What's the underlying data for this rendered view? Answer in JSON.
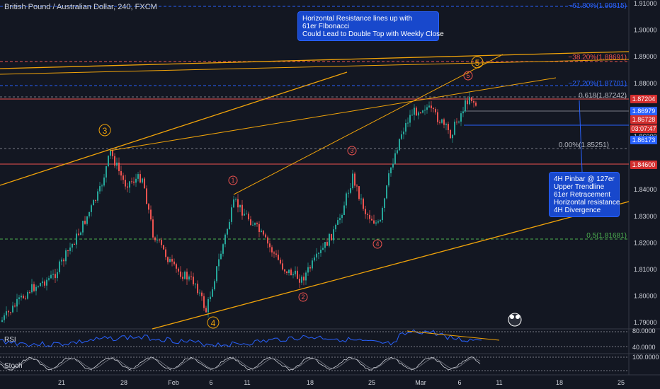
{
  "symbol_title": "British Pound / Australian Dollar, 240, FXCM",
  "annotations": {
    "top_note": [
      "Horizontal Resistance lines up with",
      "61er FIbonacci",
      "Could Lead to Double Top with Weekly Close"
    ],
    "right_note": [
      "4H Pinbar @ 127er",
      "Upper Trendline",
      "61er Retracement",
      "Horizontal resistance",
      "4H Divergence"
    ]
  },
  "fib_labels": {
    "f618": "−61.80%(1.90815)",
    "f382": "−38.20%(1.88691)",
    "f272": "−27.20%(1.87701)",
    "f0618": "0.618(1.87242)",
    "f0": "0.00%(1.85251)",
    "f05": "0.5(1.81681)"
  },
  "wave_labels": {
    "w3_big": "3",
    "w4_big": "4",
    "w5_big": "5",
    "w1_small": "1",
    "w2_small": "2",
    "w3_small": "3",
    "w4_small": "4",
    "w5_small": "5"
  },
  "price_axis": [
    "1.91000",
    "1.90000",
    "1.89000",
    "1.88000",
    "1.87000",
    "1.86000",
    "1.85000",
    "1.84000",
    "1.83000",
    "1.82000",
    "1.81000",
    "1.80000",
    "1.79000"
  ],
  "price_tags": [
    {
      "text": "1.87204",
      "color": "#d32f2f"
    },
    {
      "text": "1.86979",
      "color": "#2962ff"
    },
    {
      "text": "1.86728",
      "color": "#d32f2f"
    },
    {
      "text": "03:07:47",
      "color": "#d32f2f"
    },
    {
      "text": "1.86173",
      "color": "#2962ff"
    },
    {
      "text": "1.84600",
      "color": "#d32f2f"
    }
  ],
  "rsi": {
    "label": "RSI",
    "ticks": [
      "80.0000",
      "40.0000"
    ]
  },
  "stoch": {
    "label": "Stoch",
    "ticks": [
      "100.0000"
    ]
  },
  "time_axis": [
    "21",
    "28",
    "Feb",
    "6",
    "11",
    "18",
    "25",
    "Mar",
    "6",
    "11",
    "18",
    "25"
  ],
  "colors": {
    "background": "#131722",
    "candle_up": "#26a69a",
    "candle_down": "#ef5350",
    "trendline": "#f0a30a",
    "fib_blue": "#2962ff",
    "fib_red": "#ef5350",
    "rsi_line": "#2962ff",
    "note_bg": "#1848cc"
  }
}
